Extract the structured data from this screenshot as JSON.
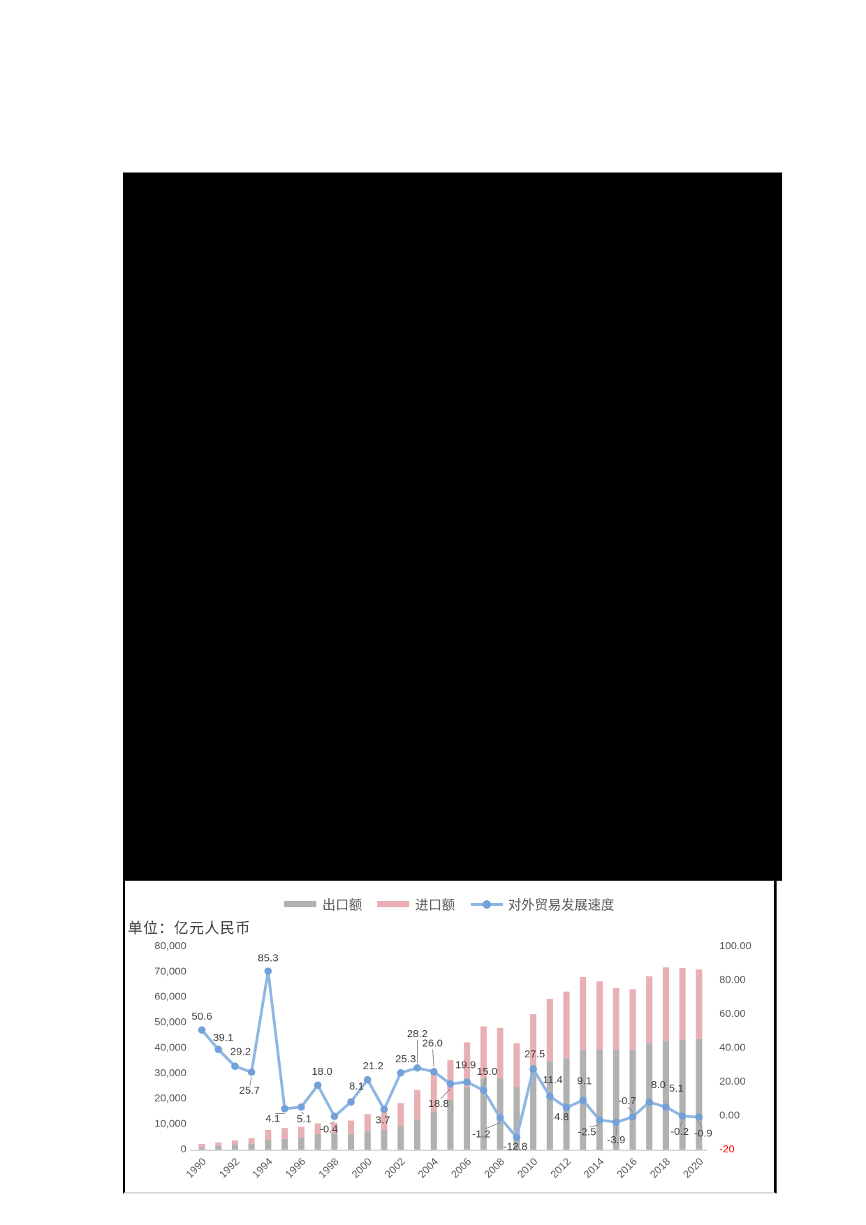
{
  "chart": {
    "unit_label": "单位：亿元人民币",
    "legend": [
      {
        "label": "出口额",
        "type": "bar",
        "color": "#b1b1b1"
      },
      {
        "label": "进口额",
        "type": "bar",
        "color": "#e8b0b4"
      },
      {
        "label": "对外贸易发展速度",
        "type": "line",
        "color": "#8fb6e3",
        "dot_color": "#73a1d7"
      }
    ],
    "colors": {
      "export_bar": "#b1b1b1",
      "import_bar": "#e8b0b4",
      "line": "#8fb6e3",
      "dot": "#73a1d7",
      "axis_text": "#595959",
      "data_label_text": "#404040",
      "negative_tick": "#ff0000",
      "axis_line": "#bfbfbf",
      "leader_line": "#7f7f7f"
    }
  },
  "chart_data": {
    "type": "bar+line",
    "title": "",
    "unit": "亿元人民币",
    "categories": [
      1990,
      1991,
      1992,
      1993,
      1994,
      1995,
      1996,
      1997,
      1998,
      1999,
      2000,
      2001,
      2002,
      2003,
      2004,
      2005,
      2006,
      2007,
      2008,
      2009,
      2010,
      2011,
      2012,
      2013,
      2014,
      2015,
      2016,
      2017,
      2018,
      2019,
      2020
    ],
    "x_tick_labels": [
      "1990",
      "1992",
      "1994",
      "1996",
      "1998",
      "2000",
      "2002",
      "2004",
      "2006",
      "2008",
      "2010",
      "2012",
      "2014",
      "2016",
      "2018",
      "2020"
    ],
    "series": [
      {
        "name": "出口额",
        "type": "bar",
        "stacked": true,
        "axis": "left",
        "values": [
          900,
          1400,
          1900,
          2300,
          3700,
          4150,
          4700,
          6100,
          6350,
          6100,
          7200,
          7700,
          9200,
          11900,
          15000,
          19500,
          24500,
          28000,
          28200,
          24600,
          33500,
          34800,
          35900,
          39200,
          39400,
          39200,
          39200,
          42000,
          42800,
          43300,
          43600
        ]
      },
      {
        "name": "进口额",
        "type": "bar",
        "stacked": true,
        "axis": "left",
        "values": [
          1300,
          1400,
          1700,
          2200,
          4050,
          4300,
          4300,
          4200,
          4150,
          5300,
          6700,
          6800,
          9100,
          11600,
          14600,
          15700,
          17700,
          20500,
          19700,
          17200,
          19800,
          24550,
          26300,
          28700,
          26800,
          24400,
          23950,
          26200,
          28900,
          28200,
          27300
        ]
      },
      {
        "name": "对外贸易发展速度",
        "type": "line",
        "axis": "right",
        "values": [
          50.6,
          39.1,
          29.2,
          25.7,
          85.3,
          4.1,
          5.1,
          18.0,
          -0.4,
          8.1,
          21.2,
          3.7,
          25.3,
          28.2,
          26.0,
          18.8,
          19.9,
          15.0,
          -1.2,
          -12.8,
          27.5,
          11.4,
          4.8,
          9.1,
          -2.5,
          -3.9,
          -0.7,
          8.0,
          5.1,
          -0.2,
          -0.9
        ],
        "point_labels": [
          "50.6",
          "39.1",
          "29.2",
          "25.7",
          "85.3",
          "4.1",
          "5.1",
          "18.0",
          "-0.4",
          "8.1",
          "21.2",
          "3.7",
          "25.3",
          "28.2",
          "26.0",
          "18.8",
          "19.9",
          "15.0",
          "-1.2",
          "-12.8",
          "27.5",
          "11.4",
          "4.8",
          "9.1",
          "-2.5",
          "-3.9",
          "-0.7",
          "8.0",
          "5.1",
          "-0.2",
          "-0.9"
        ],
        "label_offsets": [
          [
            0,
            -19
          ],
          [
            7,
            -16
          ],
          [
            8,
            -20
          ],
          [
            -3,
            27
          ],
          [
            0,
            -18
          ],
          [
            -17,
            15
          ],
          [
            4,
            18
          ],
          [
            6,
            -19
          ],
          [
            -8,
            19
          ],
          [
            8,
            -22
          ],
          [
            8,
            -19
          ],
          [
            -2,
            16
          ],
          [
            7,
            -19
          ],
          [
            0,
            -48
          ],
          [
            -2,
            -40
          ],
          [
            -17,
            29
          ],
          [
            -2,
            -24
          ],
          [
            5,
            -26
          ],
          [
            -27,
            24
          ],
          [
            -2,
            14
          ],
          [
            2,
            -21
          ],
          [
            4,
            -23
          ],
          [
            -7,
            14
          ],
          [
            2,
            -27
          ],
          [
            -18,
            18
          ],
          [
            0,
            26
          ],
          [
            -8,
            -22
          ],
          [
            13,
            -24
          ],
          [
            15,
            -26
          ],
          [
            -4,
            23
          ],
          [
            6,
            24
          ]
        ],
        "label_leaders": [
          false,
          false,
          false,
          true,
          false,
          true,
          true,
          false,
          true,
          false,
          false,
          false,
          false,
          true,
          true,
          true,
          false,
          true,
          true,
          false,
          false,
          false,
          false,
          false,
          true,
          true,
          true,
          false,
          false,
          true,
          true
        ]
      }
    ],
    "left_axis": {
      "min": 0,
      "max": 80000,
      "tick_step": 10000,
      "tick_labels": [
        "0",
        "10,000",
        "20,000",
        "30,000",
        "40,000",
        "50,000",
        "60,000",
        "70,000",
        "80,000"
      ]
    },
    "right_axis": {
      "min": -20,
      "max": 100,
      "tick_step": 20,
      "tick_labels": [
        "100.00",
        "80.00",
        "60.00",
        "40.00",
        "20.00",
        "0.00"
      ],
      "negative_tick_label": "-20"
    },
    "grid": false,
    "legend_position": "top-center"
  }
}
